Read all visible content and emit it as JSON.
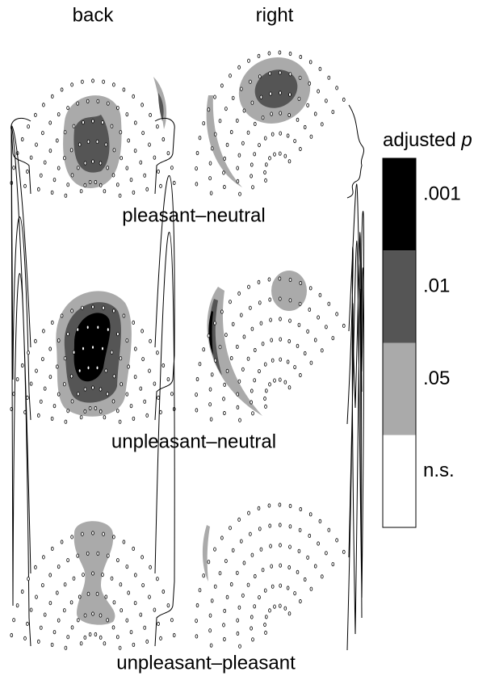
{
  "columns": [
    "back",
    "right"
  ],
  "rows": [
    "pleasant–neutral",
    "unpleasant–neutral",
    "unpleasant–pleasant"
  ],
  "legend": {
    "title": "adjusted",
    "title_symbol": "p",
    "levels": [
      {
        "label": ".001",
        "color": "#000000"
      },
      {
        "label": ".01",
        "color": "#555555"
      },
      {
        "label": ".05",
        "color": "#aaaaaa"
      },
      {
        "label": "n.s.",
        "color": "#ffffff"
      }
    ]
  }
}
